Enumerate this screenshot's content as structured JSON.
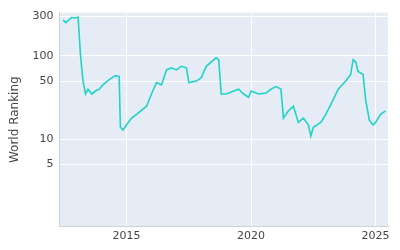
{
  "chart_data": {
    "type": "line",
    "y_label": "World Ranking",
    "log": "y",
    "grid": true,
    "color": "#1fd3c6",
    "x": [
      2012.45,
      2012.55,
      2012.65,
      2012.8,
      2012.9,
      2013.05,
      2013.15,
      2013.25,
      2013.35,
      2013.45,
      2013.6,
      2013.75,
      2013.9,
      2014.05,
      2014.3,
      2014.55,
      2014.7,
      2014.75,
      2014.85,
      2015.0,
      2015.2,
      2015.4,
      2015.8,
      2016.0,
      2016.2,
      2016.4,
      2016.5,
      2016.6,
      2016.8,
      2017.0,
      2017.2,
      2017.4,
      2017.5,
      2017.8,
      2018.0,
      2018.2,
      2018.4,
      2018.6,
      2018.7,
      2018.8,
      2019.0,
      2019.3,
      2019.5,
      2019.7,
      2019.9,
      2020.0,
      2020.3,
      2020.6,
      2020.8,
      2021.0,
      2021.2,
      2021.3,
      2021.5,
      2021.7,
      2021.9,
      2022.1,
      2022.3,
      2022.4,
      2022.5,
      2022.8,
      2023.0,
      2023.3,
      2023.5,
      2023.8,
      2024.0,
      2024.1,
      2024.2,
      2024.3,
      2024.5,
      2024.6,
      2024.75,
      2024.9,
      2025.0,
      2025.2,
      2025.4
    ],
    "values": [
      270,
      250,
      265,
      290,
      285,
      290,
      100,
      50,
      35,
      40,
      35,
      38,
      40,
      45,
      52,
      58,
      57,
      14,
      13,
      15,
      18,
      20,
      25,
      35,
      48,
      45,
      55,
      68,
      72,
      68,
      75,
      72,
      48,
      50,
      55,
      75,
      85,
      95,
      90,
      35,
      35,
      38,
      40,
      35,
      32,
      38,
      35,
      36,
      40,
      43,
      40,
      18,
      22,
      25,
      16,
      18,
      15,
      11,
      14,
      16,
      20,
      30,
      40,
      50,
      60,
      90,
      85,
      65,
      60,
      30,
      17,
      15,
      16,
      20,
      22
    ],
    "xlim": [
      2012.3,
      2025.5
    ],
    "xticks": [
      2015,
      2020,
      2025
    ],
    "ylim": [
      0.9,
      330
    ],
    "yticks": [
      5,
      10,
      50,
      100,
      300
    ]
  }
}
